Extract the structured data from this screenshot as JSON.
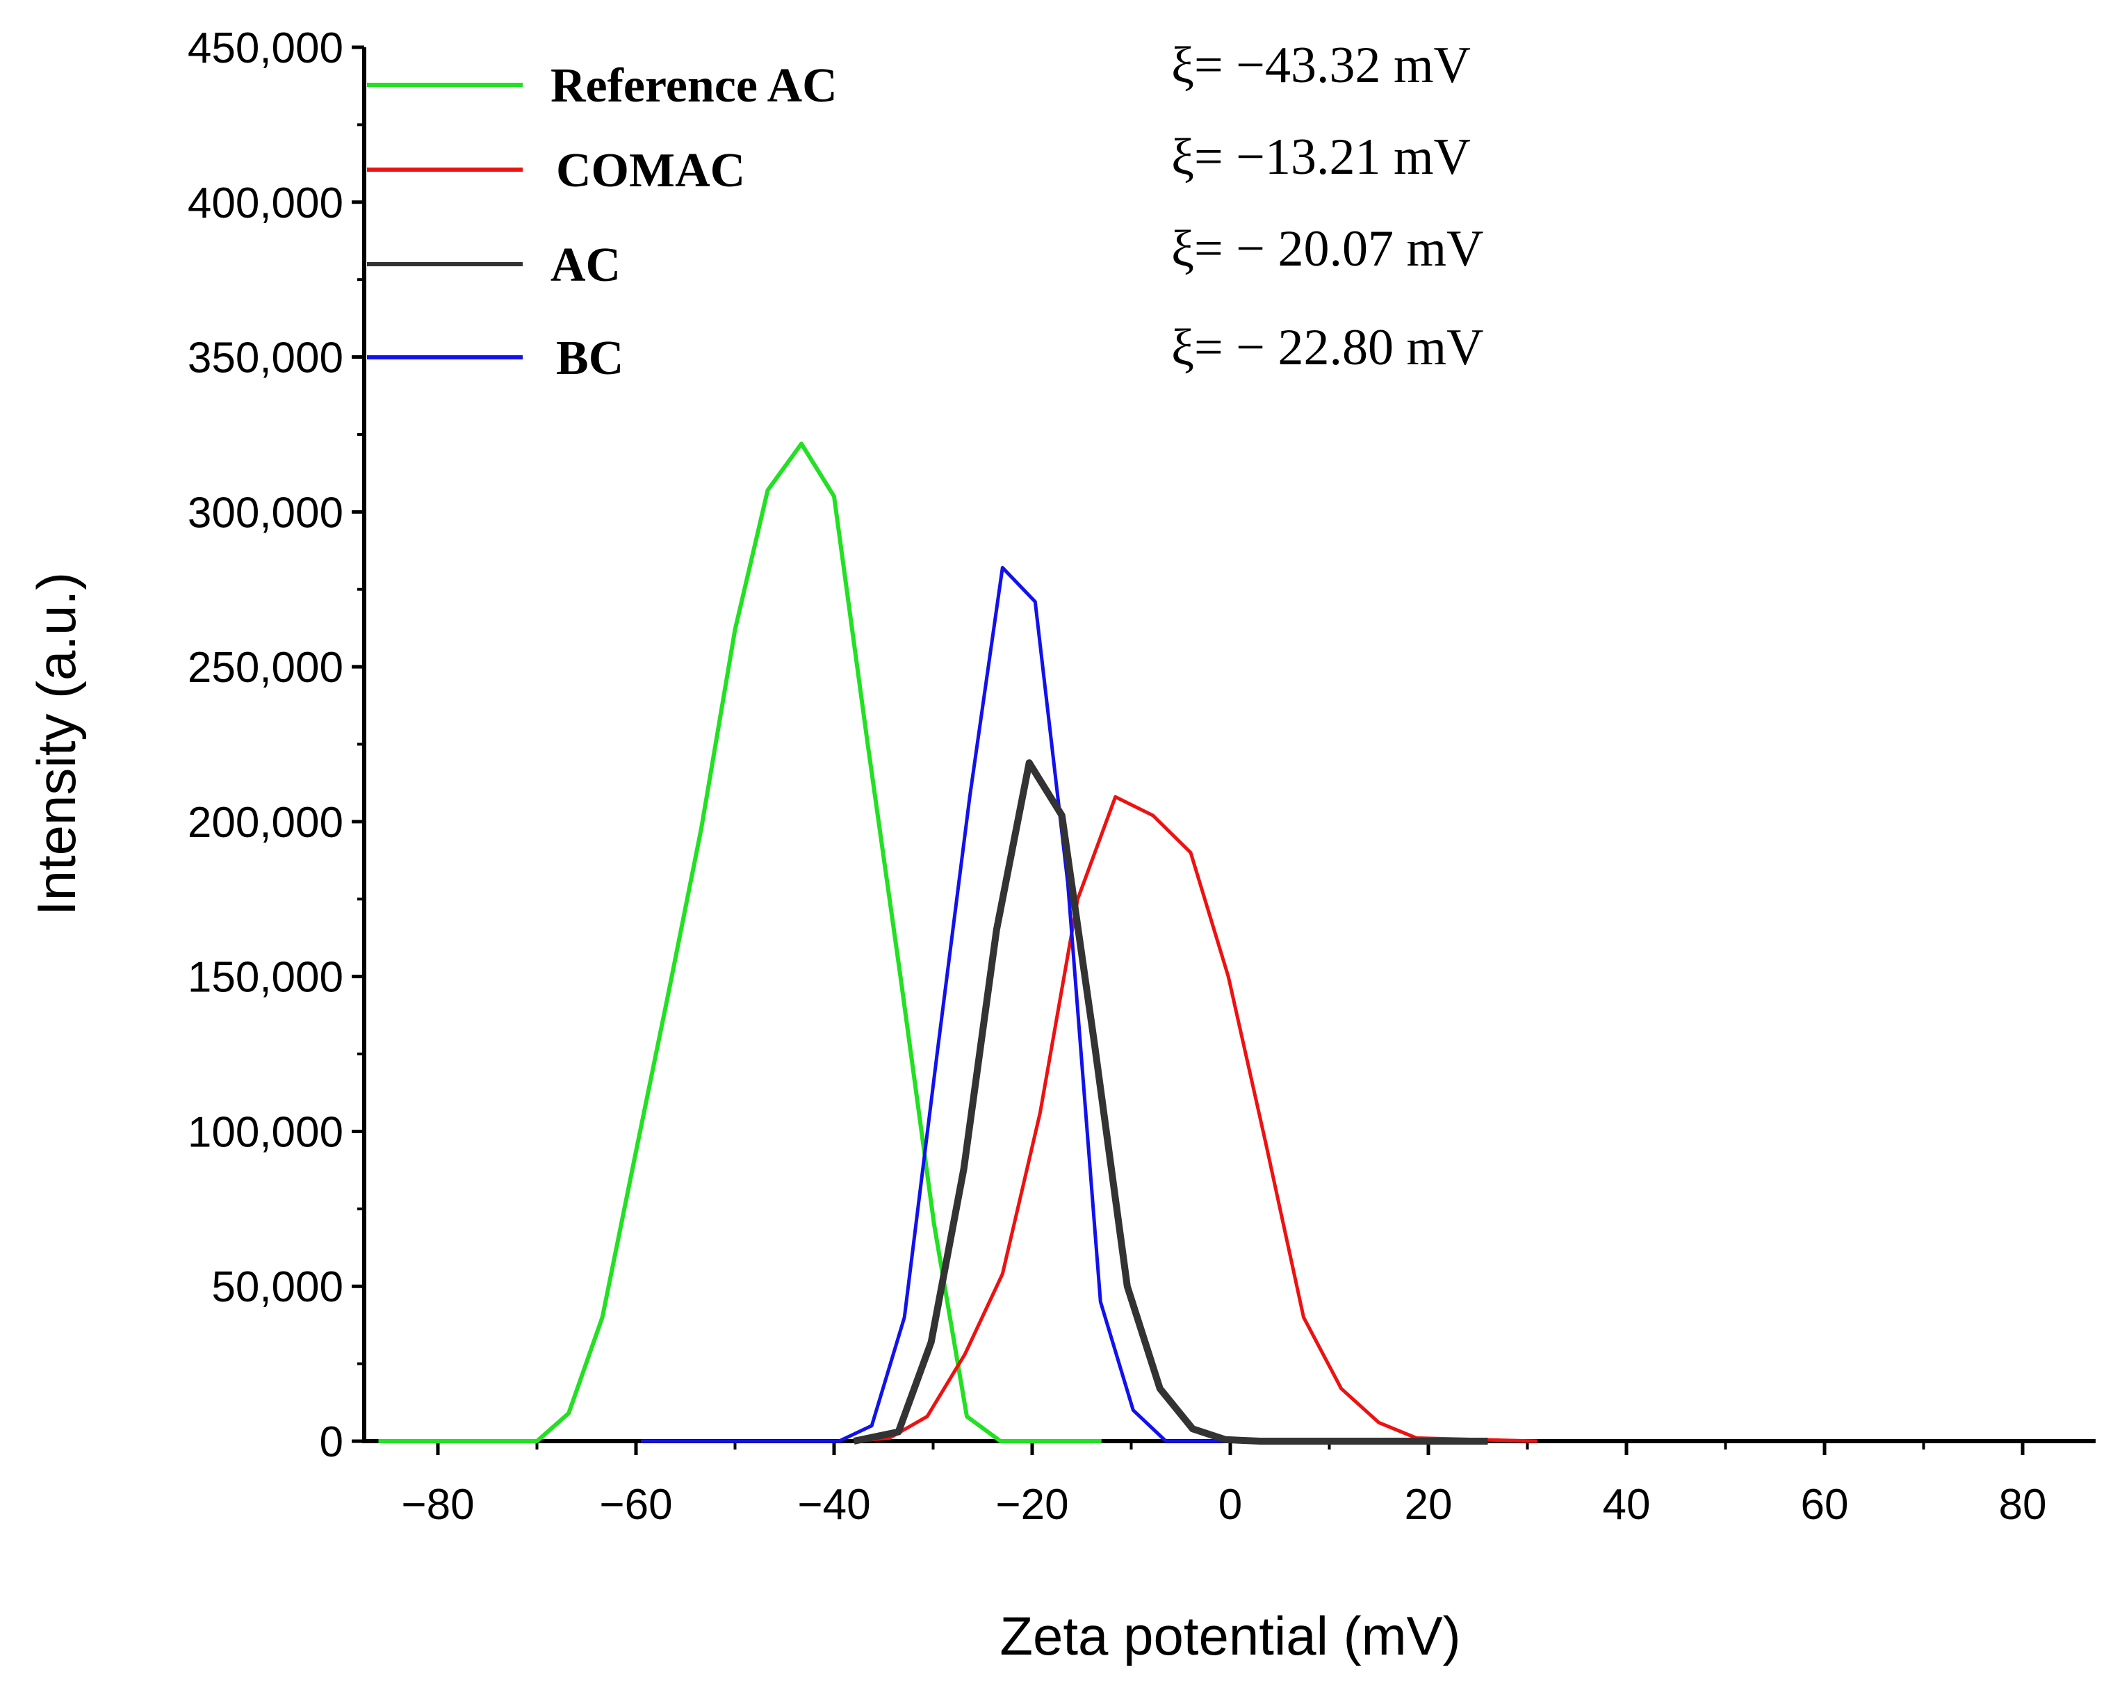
{
  "chart_data": {
    "type": "line",
    "title": "",
    "xlabel": "Zeta potential (mV)",
    "ylabel": "Intensity (a.u.)",
    "xlim": [
      -88,
      88
    ],
    "ylim": [
      0,
      450000
    ],
    "x_ticks": [
      -80,
      -60,
      -40,
      -20,
      0,
      20,
      40,
      60,
      80
    ],
    "x_tick_labels": [
      "−80",
      "−60",
      "−40",
      "−20",
      "0",
      "20",
      "40",
      "60",
      "80"
    ],
    "y_ticks": [
      0,
      50000,
      100000,
      150000,
      200000,
      250000,
      300000,
      350000,
      400000,
      450000
    ],
    "y_tick_labels": [
      "0",
      "50,000",
      "100,000",
      "150,000",
      "200,000",
      "250,000",
      "300,000",
      "350,000",
      "400,000",
      "450,000"
    ],
    "grid": false,
    "legend_position": "top-left",
    "series": [
      {
        "name": "Reference AC",
        "color": "#22e022",
        "zeta_label": "ξ= −43.32 mV",
        "x": [
          -86,
          -70,
          -66.8,
          -63.4,
          -60.1,
          -56.7,
          -53.4,
          -50.0,
          -46.7,
          -43.3,
          -40.0,
          -36.6,
          -33.3,
          -29.9,
          -26.6,
          -23.2,
          -13
        ],
        "y": [
          0,
          0,
          9000,
          40000,
          92000,
          145000,
          198000,
          262000,
          307000,
          322000,
          305000,
          225000,
          150000,
          70000,
          8000,
          0,
          0
        ]
      },
      {
        "name": "COMAC",
        "color": "#ee1111",
        "zeta_label": "ξ= −13.21 mV",
        "x": [
          -38,
          -34.4,
          -30.6,
          -26.8,
          -23.0,
          -19.2,
          -15.4,
          -11.6,
          -7.8,
          -4.0,
          -0.2,
          3.6,
          7.4,
          11.2,
          15.0,
          18.8,
          31
        ],
        "y": [
          0,
          1000,
          8000,
          28000,
          54000,
          106000,
          175000,
          208000,
          202000,
          190000,
          150000,
          96000,
          40000,
          17000,
          6000,
          1000,
          0
        ]
      },
      {
        "name": "AC",
        "color": "#333333",
        "zeta_label": "ξ= − 20.07 mV",
        "x": [
          -38,
          -33.5,
          -30.2,
          -26.9,
          -23.6,
          -20.3,
          -17.0,
          -13.7,
          -10.4,
          -7.1,
          -3.8,
          -0.5,
          3.0,
          26
        ],
        "y": [
          0,
          3000,
          32000,
          88000,
          165000,
          219000,
          202000,
          128000,
          50000,
          17000,
          4000,
          500,
          0,
          0
        ]
      },
      {
        "name": "BC",
        "color": "#1111ee",
        "zeta_label": "ξ= − 22.80 mV",
        "x": [
          -59.5,
          -39.5,
          -36.2,
          -32.9,
          -29.6,
          -26.3,
          -23.0,
          -19.7,
          -16.4,
          -13.1,
          -9.8,
          -6.5,
          20
        ],
        "y": [
          0,
          0,
          5000,
          40000,
          125000,
          208000,
          282000,
          271000,
          180000,
          45000,
          10000,
          0,
          0
        ]
      }
    ]
  }
}
